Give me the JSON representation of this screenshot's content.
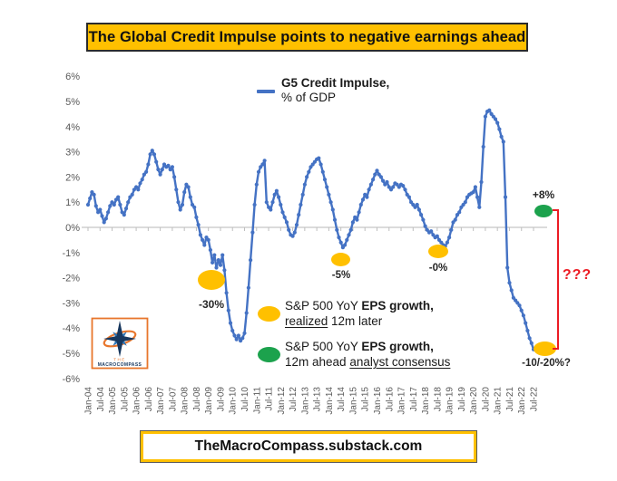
{
  "title_banner": {
    "text": "The Global Credit Impulse points to negative earnings ahead"
  },
  "footer_banner": {
    "text": "TheMacroCompass.substack.com"
  },
  "logo": {
    "line1": "THE",
    "line2": "MACROCOMPASS"
  },
  "line_legend": {
    "line1": "G5 Credit Impulse,",
    "line2": "% of GDP"
  },
  "eps_legend": {
    "realized": {
      "prefix": "S&P 500 YoY ",
      "bold": "EPS growth,",
      "underline": "realized",
      "rest": " 12m later"
    },
    "consensus": {
      "prefix": "S&P 500 YoY ",
      "bold": "EPS growth,",
      "rest": "12m ahead ",
      "underline": "analyst consensus"
    }
  },
  "annotations": {
    "gfc": "-30%",
    "y2014": "-5%",
    "y2018": "-0%",
    "consensus": "+8%",
    "implied": "-10/-20%?",
    "question": "???"
  },
  "colors": {
    "gold": "#FFC000",
    "line_blue": "#4472C4",
    "green": "#1CA24D",
    "red": "#EC1C24",
    "axis_text": "#595959"
  },
  "chart_data": {
    "type": "line",
    "title": "The Global Credit Impulse points to negative earnings ahead",
    "series_name": "G5 Credit Impulse, % of GDP",
    "ylabel": "% of GDP",
    "ylim": [
      -6,
      6
    ],
    "y_tick_labels": [
      "6%",
      "5%",
      "4%",
      "3%",
      "2%",
      "1%",
      "0%",
      "-1%",
      "-2%",
      "-3%",
      "-4%",
      "-5%",
      "-6%"
    ],
    "x_tick_labels": [
      "Jan-04",
      "Jul-04",
      "Jan-05",
      "Jul-05",
      "Jan-06",
      "Jul-06",
      "Jan-07",
      "Jul-07",
      "Jan-08",
      "Jul-08",
      "Jan-09",
      "Jul-09",
      "Jan-10",
      "Jul-10",
      "Jan-11",
      "Jul-11",
      "Jan-12",
      "Jul-12",
      "Jan-13",
      "Jul-13",
      "Jan-14",
      "Jul-14",
      "Jan-15",
      "Jul-15",
      "Jan-16",
      "Jul-16",
      "Jan-17",
      "Jul-17",
      "Jan-18",
      "Jul-18",
      "Jan-19",
      "Jul-19",
      "Jan-20",
      "Jul-20",
      "Jan-21",
      "Jul-21",
      "Jan-22",
      "Jul-22"
    ],
    "grid": "zero-axis-only",
    "legend_position": "top-center",
    "x_monthly_start": "Jan-04",
    "x_monthly_end": "Jul-22",
    "monthly_values_pct_gdp": [
      0.9,
      1.15,
      1.4,
      1.3,
      0.85,
      0.6,
      0.7,
      0.45,
      0.2,
      0.35,
      0.6,
      0.85,
      1.0,
      0.9,
      1.1,
      1.2,
      0.9,
      0.6,
      0.5,
      0.75,
      1.0,
      1.2,
      1.3,
      1.5,
      1.6,
      1.5,
      1.75,
      1.9,
      2.1,
      2.2,
      2.5,
      2.9,
      3.05,
      2.9,
      2.6,
      2.3,
      2.1,
      2.3,
      2.5,
      2.4,
      2.45,
      2.3,
      2.4,
      2.0,
      1.5,
      1.0,
      0.7,
      0.9,
      1.4,
      1.7,
      1.6,
      1.2,
      0.9,
      0.8,
      0.4,
      0.1,
      -0.3,
      -0.5,
      -0.7,
      -0.4,
      -0.5,
      -0.9,
      -1.4,
      -1.1,
      -1.6,
      -1.3,
      -1.5,
      -1.1,
      -1.7,
      -2.6,
      -3.3,
      -3.8,
      -4.1,
      -4.3,
      -4.45,
      -4.3,
      -4.5,
      -4.4,
      -4.2,
      -3.4,
      -2.4,
      -1.3,
      -0.2,
      0.9,
      1.7,
      2.2,
      2.4,
      2.5,
      2.65,
      1.0,
      0.8,
      0.7,
      1.0,
      1.3,
      1.45,
      1.2,
      0.9,
      0.6,
      0.4,
      0.2,
      -0.1,
      -0.3,
      -0.35,
      -0.2,
      0.1,
      0.5,
      0.9,
      1.3,
      1.7,
      2.0,
      2.2,
      2.4,
      2.5,
      2.6,
      2.7,
      2.75,
      2.5,
      2.2,
      1.9,
      1.6,
      1.3,
      1.0,
      0.7,
      0.3,
      -0.1,
      -0.4,
      -0.6,
      -0.8,
      -0.7,
      -0.5,
      -0.3,
      -0.1,
      0.2,
      0.4,
      0.3,
      0.6,
      0.9,
      1.1,
      1.3,
      1.2,
      1.5,
      1.7,
      1.9,
      2.1,
      2.25,
      2.1,
      2.0,
      1.85,
      1.7,
      1.8,
      1.6,
      1.5,
      1.6,
      1.75,
      1.7,
      1.6,
      1.7,
      1.65,
      1.5,
      1.3,
      1.2,
      1.0,
      0.9,
      0.8,
      0.9,
      0.7,
      0.5,
      0.3,
      0.05,
      -0.1,
      -0.2,
      -0.15,
      -0.3,
      -0.4,
      -0.35,
      -0.5,
      -0.6,
      -0.7,
      -0.75,
      -0.6,
      -0.4,
      -0.1,
      0.2,
      0.3,
      0.5,
      0.6,
      0.8,
      0.9,
      1.0,
      1.2,
      1.3,
      1.35,
      1.4,
      1.6,
      1.2,
      0.8,
      1.8,
      3.2,
      4.4,
      4.6,
      4.65,
      4.5,
      4.4,
      4.3,
      4.15,
      3.9,
      3.6,
      3.4,
      1.2,
      -1.6,
      -2.2,
      -2.5,
      -2.8,
      -2.9,
      -3.0,
      -3.1,
      -3.3,
      -3.5,
      -3.8,
      -4.1,
      -4.4,
      -4.6,
      -4.85
    ],
    "annotation_points": [
      {
        "label": "-30%",
        "meaning": "S&P 500 YoY EPS growth realized 12m later",
        "x": "Feb-09",
        "marker_y_pct": -2.1,
        "color": "gold"
      },
      {
        "label": "-5%",
        "meaning": "S&P 500 YoY EPS growth realized 12m later",
        "x": "Jul-14",
        "marker_y_pct": -1.3,
        "color": "gold"
      },
      {
        "label": "-0%",
        "meaning": "S&P 500 YoY EPS growth realized 12m later",
        "x": "Jul-18",
        "marker_y_pct": -1.0,
        "color": "gold"
      },
      {
        "label": "+8%",
        "meaning": "S&P 500 YoY EPS growth 12m ahead analyst consensus",
        "x": "after Jul-22",
        "marker_y_pct": 0.6,
        "color": "green"
      },
      {
        "label": "-10/-20%?",
        "meaning": "implied realized EPS growth",
        "x": "after Jul-22",
        "marker_y_pct": -4.9,
        "color": "gold"
      }
    ]
  }
}
